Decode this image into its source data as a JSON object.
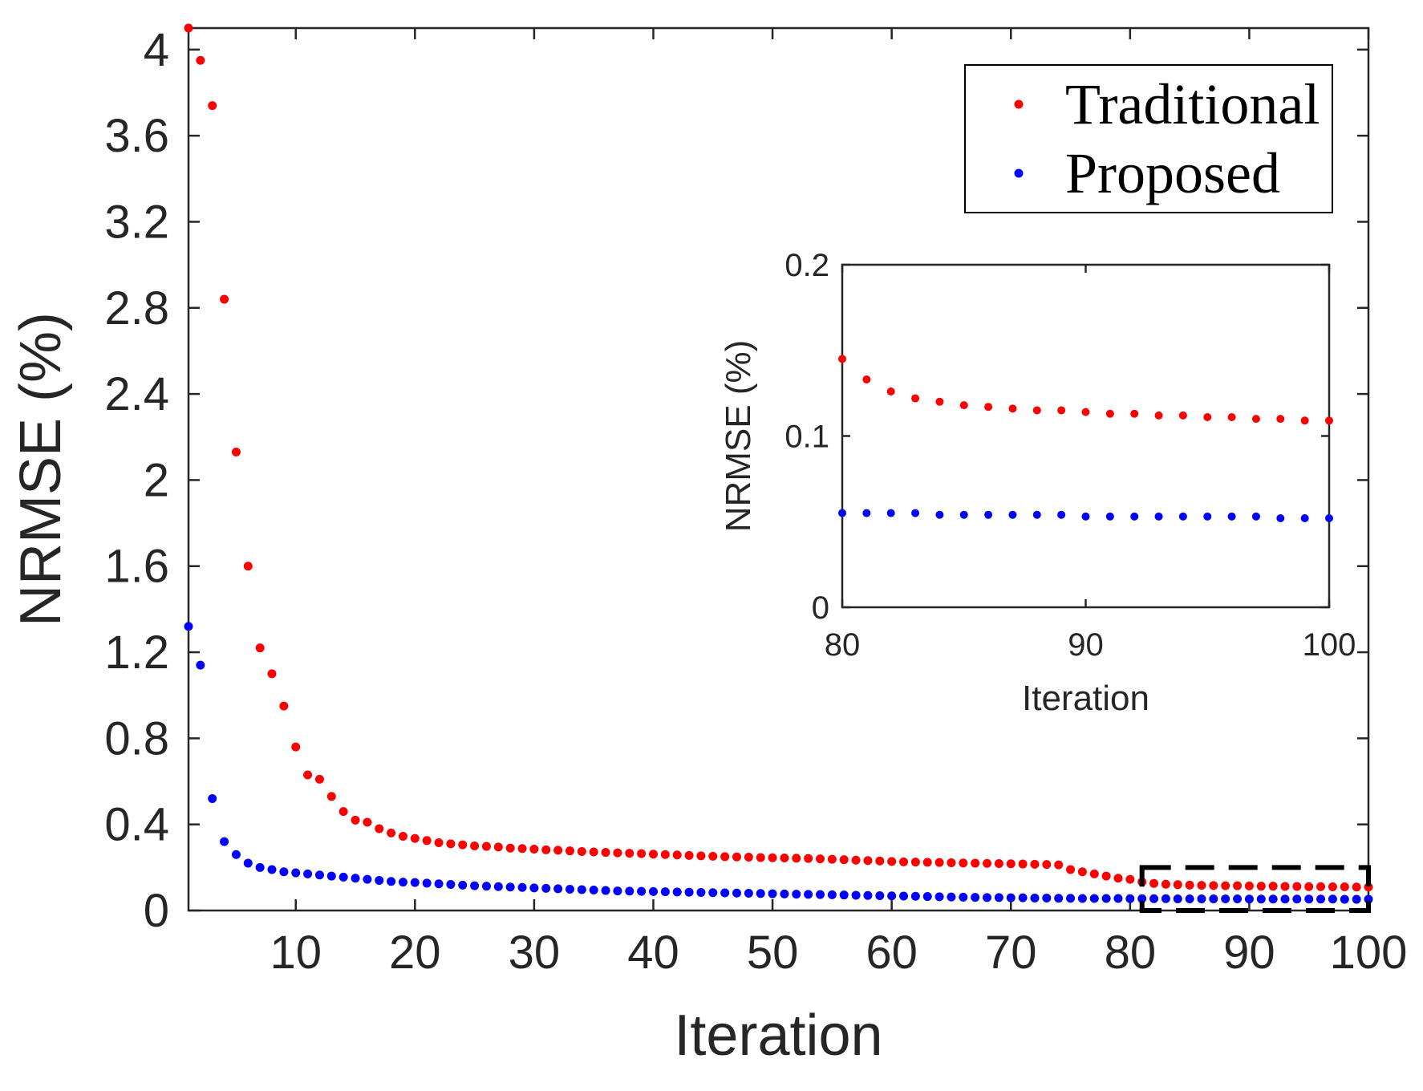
{
  "colors": {
    "traditional": "#ff0000",
    "proposed": "#0000ff",
    "axis": "#262626",
    "zoom_box": "#000000"
  },
  "chart_data": [
    {
      "id": "main",
      "type": "scatter",
      "title": "",
      "xlabel": "Iteration",
      "ylabel": "NRMSE (%)",
      "xlim": [
        1,
        100
      ],
      "ylim": [
        0,
        4.1
      ],
      "xticks": [
        10,
        20,
        30,
        40,
        50,
        60,
        70,
        80,
        90,
        100
      ],
      "xtick_labels": [
        "10",
        "20",
        "30",
        "40",
        "50",
        "60",
        "70",
        "80",
        "90",
        "100"
      ],
      "yticks": [
        0,
        0.4,
        0.8,
        1.2,
        1.6,
        2,
        2.4,
        2.8,
        3.2,
        3.6,
        4
      ],
      "ytick_labels": [
        "0",
        "0.4",
        "0.8",
        "1.2",
        "1.6",
        "2",
        "2.4",
        "2.8",
        "3.2",
        "3.6",
        "4"
      ],
      "grid": false,
      "legend_position": "top-right",
      "zoom_region": {
        "x": [
          81,
          100
        ],
        "y": [
          0,
          0.2
        ]
      },
      "series": [
        {
          "name": "Traditional",
          "color_key": "traditional",
          "x": [
            1,
            2,
            3,
            4,
            5,
            6,
            7,
            8,
            9,
            10,
            11,
            12,
            13,
            14,
            15,
            16,
            17,
            18,
            19,
            20,
            21,
            22,
            23,
            24,
            25,
            26,
            27,
            28,
            29,
            30,
            31,
            32,
            33,
            34,
            35,
            36,
            37,
            38,
            39,
            40,
            41,
            42,
            43,
            44,
            45,
            46,
            47,
            48,
            49,
            50,
            51,
            52,
            53,
            54,
            55,
            56,
            57,
            58,
            59,
            60,
            61,
            62,
            63,
            64,
            65,
            66,
            67,
            68,
            69,
            70,
            71,
            72,
            73,
            74,
            75,
            76,
            77,
            78,
            79,
            80,
            81,
            82,
            83,
            84,
            85,
            86,
            87,
            88,
            89,
            90,
            91,
            92,
            93,
            94,
            95,
            96,
            97,
            98,
            99,
            100
          ],
          "values": [
            4.1,
            3.95,
            3.74,
            2.84,
            2.13,
            1.6,
            1.22,
            1.1,
            0.95,
            0.76,
            0.63,
            0.61,
            0.53,
            0.46,
            0.42,
            0.41,
            0.38,
            0.36,
            0.345,
            0.335,
            0.325,
            0.315,
            0.31,
            0.305,
            0.3,
            0.298,
            0.295,
            0.29,
            0.288,
            0.285,
            0.282,
            0.28,
            0.277,
            0.274,
            0.272,
            0.27,
            0.268,
            0.266,
            0.264,
            0.262,
            0.26,
            0.258,
            0.256,
            0.254,
            0.252,
            0.25,
            0.249,
            0.248,
            0.246,
            0.245,
            0.244,
            0.243,
            0.242,
            0.24,
            0.238,
            0.236,
            0.234,
            0.232,
            0.23,
            0.228,
            0.226,
            0.225,
            0.224,
            0.223,
            0.222,
            0.221,
            0.22,
            0.219,
            0.218,
            0.217,
            0.216,
            0.215,
            0.214,
            0.212,
            0.19,
            0.18,
            0.17,
            0.16,
            0.15,
            0.145,
            0.133,
            0.126,
            0.122,
            0.12,
            0.118,
            0.117,
            0.116,
            0.115,
            0.115,
            0.114,
            0.113,
            0.113,
            0.112,
            0.112,
            0.111,
            0.111,
            0.11,
            0.11,
            0.109,
            0.109
          ]
        },
        {
          "name": "Proposed",
          "color_key": "proposed",
          "x": [
            1,
            2,
            3,
            4,
            5,
            6,
            7,
            8,
            9,
            10,
            11,
            12,
            13,
            14,
            15,
            16,
            17,
            18,
            19,
            20,
            21,
            22,
            23,
            24,
            25,
            26,
            27,
            28,
            29,
            30,
            31,
            32,
            33,
            34,
            35,
            36,
            37,
            38,
            39,
            40,
            41,
            42,
            43,
            44,
            45,
            46,
            47,
            48,
            49,
            50,
            51,
            52,
            53,
            54,
            55,
            56,
            57,
            58,
            59,
            60,
            61,
            62,
            63,
            64,
            65,
            66,
            67,
            68,
            69,
            70,
            71,
            72,
            73,
            74,
            75,
            76,
            77,
            78,
            79,
            80,
            81,
            82,
            83,
            84,
            85,
            86,
            87,
            88,
            89,
            90,
            91,
            92,
            93,
            94,
            95,
            96,
            97,
            98,
            99,
            100
          ],
          "values": [
            1.32,
            1.14,
            0.52,
            0.32,
            0.26,
            0.22,
            0.2,
            0.19,
            0.18,
            0.175,
            0.17,
            0.165,
            0.16,
            0.155,
            0.15,
            0.145,
            0.14,
            0.135,
            0.132,
            0.13,
            0.127,
            0.124,
            0.121,
            0.118,
            0.115,
            0.113,
            0.111,
            0.109,
            0.107,
            0.105,
            0.103,
            0.101,
            0.099,
            0.097,
            0.095,
            0.093,
            0.091,
            0.09,
            0.089,
            0.088,
            0.087,
            0.086,
            0.085,
            0.084,
            0.083,
            0.082,
            0.081,
            0.08,
            0.079,
            0.078,
            0.077,
            0.076,
            0.075,
            0.074,
            0.073,
            0.072,
            0.071,
            0.07,
            0.069,
            0.068,
            0.067,
            0.066,
            0.065,
            0.064,
            0.063,
            0.062,
            0.061,
            0.06,
            0.06,
            0.059,
            0.059,
            0.058,
            0.058,
            0.057,
            0.057,
            0.056,
            0.056,
            0.056,
            0.056,
            0.055,
            0.055,
            0.055,
            0.055,
            0.054,
            0.054,
            0.054,
            0.054,
            0.054,
            0.054,
            0.053,
            0.053,
            0.053,
            0.053,
            0.053,
            0.053,
            0.053,
            0.053,
            0.052,
            0.052,
            0.052
          ]
        }
      ]
    },
    {
      "id": "inset",
      "type": "scatter",
      "title": "",
      "xlabel": "Iteration",
      "ylabel": "NRMSE (%)",
      "xlim": [
        80,
        100
      ],
      "ylim": [
        0,
        0.2
      ],
      "xticks": [
        80,
        90,
        100
      ],
      "xtick_labels": [
        "80",
        "90",
        "100"
      ],
      "yticks": [
        0,
        0.1,
        0.2
      ],
      "ytick_labels": [
        "0",
        "0.1",
        "0.2"
      ],
      "grid": false,
      "series": [
        {
          "name": "Traditional",
          "color_key": "traditional",
          "x": [
            80,
            81,
            82,
            83,
            84,
            85,
            86,
            87,
            88,
            89,
            90,
            91,
            92,
            93,
            94,
            95,
            96,
            97,
            98,
            99,
            100
          ],
          "values": [
            0.145,
            0.133,
            0.126,
            0.122,
            0.12,
            0.118,
            0.117,
            0.116,
            0.115,
            0.115,
            0.114,
            0.113,
            0.113,
            0.112,
            0.112,
            0.111,
            0.111,
            0.11,
            0.11,
            0.109,
            0.109
          ]
        },
        {
          "name": "Proposed",
          "color_key": "proposed",
          "x": [
            80,
            81,
            82,
            83,
            84,
            85,
            86,
            87,
            88,
            89,
            90,
            91,
            92,
            93,
            94,
            95,
            96,
            97,
            98,
            99,
            100
          ],
          "values": [
            0.055,
            0.055,
            0.055,
            0.055,
            0.054,
            0.054,
            0.054,
            0.054,
            0.054,
            0.054,
            0.053,
            0.053,
            0.053,
            0.053,
            0.053,
            0.053,
            0.053,
            0.053,
            0.052,
            0.052,
            0.052
          ]
        }
      ]
    }
  ],
  "legend": {
    "items": [
      {
        "label": "Traditional",
        "color_key": "traditional"
      },
      {
        "label": "Proposed",
        "color_key": "proposed"
      }
    ]
  }
}
